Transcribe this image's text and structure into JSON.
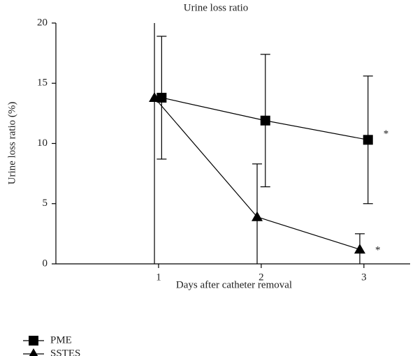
{
  "chart_data": {
    "type": "line",
    "title": "Urine loss ratio",
    "x_label": "Days after catheter removal",
    "y_label": "Urine loss ratio (%)",
    "xlim": [
      0,
      3.45
    ],
    "xticks": [
      1,
      2,
      3
    ],
    "ylim": [
      0,
      20
    ],
    "yticks": [
      0,
      5,
      10,
      15,
      20
    ],
    "legend": "bottom-left",
    "series": [
      {
        "name": "PME",
        "color": "#000000",
        "marker": "square",
        "x": [
          1.03,
          2.04,
          3.04
        ],
        "values": [
          13.8,
          11.9,
          10.3
        ],
        "errors": [
          5.1,
          5.5,
          5.3
        ],
        "annotation": "*"
      },
      {
        "name": "SSTES",
        "color": "#000000",
        "marker": "triangle",
        "x": [
          0.96,
          1.96,
          2.96
        ],
        "values": [
          13.8,
          3.9,
          1.2
        ],
        "errors": [
          13.8,
          4.4,
          1.3
        ],
        "annotation": "*"
      }
    ]
  }
}
